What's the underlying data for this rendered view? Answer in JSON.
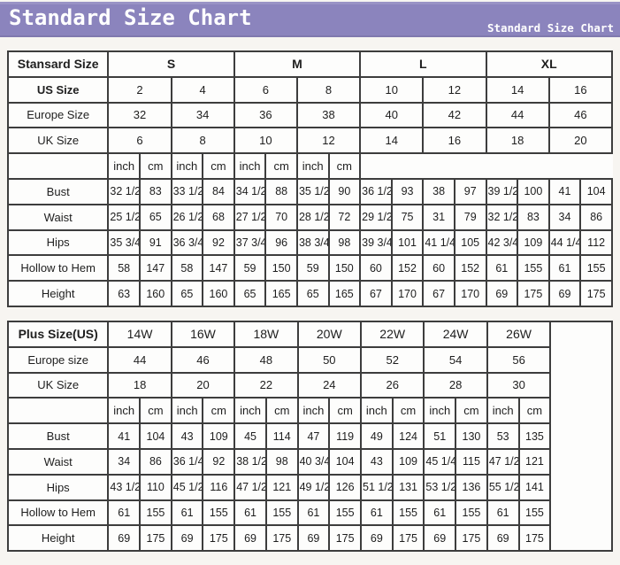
{
  "banner": {
    "title": "Standard Size Chart",
    "subtitle": "Standard Size Chart"
  },
  "colors": {
    "banner_bg": "#8b84bd",
    "banner_text": "#ffffff",
    "table_border": "#3d3d3d",
    "cell_bg": "#fdfdfc",
    "page_bg": "#f7f5f1"
  },
  "chart_data": [
    {
      "type": "table",
      "name": "standard-size-table",
      "corner_label": "Stansard Size",
      "corner_bold": true,
      "size_groups": [
        "S",
        "M",
        "L",
        "XL"
      ],
      "group_header_bold": true,
      "header_colspan": 4,
      "label_col_width": "16.6%",
      "trailing_empty": false,
      "size_rows": [
        {
          "label": "US Size",
          "bold": true,
          "values": [
            "2",
            "4",
            "6",
            "8",
            "10",
            "12",
            "14",
            "16"
          ]
        },
        {
          "label": "Europe Size",
          "bold": false,
          "values": [
            "32",
            "34",
            "36",
            "38",
            "40",
            "42",
            "44",
            "46"
          ]
        },
        {
          "label": "UK Size",
          "bold": false,
          "values": [
            "6",
            "8",
            "10",
            "12",
            "14",
            "16",
            "18",
            "20"
          ]
        }
      ],
      "unit_headers": [
        "inch",
        "cm"
      ],
      "measure_rows": [
        {
          "label": "Bust",
          "values": [
            "32 1/2",
            "83",
            "33 1/2",
            "84",
            "34 1/2",
            "88",
            "35 1/2",
            "90",
            "36 1/2",
            "93",
            "38",
            "97",
            "39 1/2",
            "100",
            "41",
            "104"
          ]
        },
        {
          "label": "Waist",
          "values": [
            "25 1/2",
            "65",
            "26 1/2",
            "68",
            "27 1/2",
            "70",
            "28 1/2",
            "72",
            "29 1/2",
            "75",
            "31",
            "79",
            "32 1/2",
            "83",
            "34",
            "86"
          ]
        },
        {
          "label": "Hips",
          "values": [
            "35 3/4",
            "91",
            "36 3/4",
            "92",
            "37 3/4",
            "96",
            "38 3/4",
            "98",
            "39 3/4",
            "101",
            "41 1/4",
            "105",
            "42 3/4",
            "109",
            "44 1/4",
            "112"
          ]
        },
        {
          "label": "Hollow to Hem",
          "values": [
            "58",
            "147",
            "58",
            "147",
            "59",
            "150",
            "59",
            "150",
            "60",
            "152",
            "60",
            "152",
            "61",
            "155",
            "61",
            "155"
          ]
        },
        {
          "label": "Height",
          "values": [
            "63",
            "160",
            "65",
            "160",
            "65",
            "165",
            "65",
            "165",
            "67",
            "170",
            "67",
            "170",
            "69",
            "175",
            "69",
            "175"
          ]
        }
      ]
    },
    {
      "type": "table",
      "name": "plus-size-table",
      "corner_label": "Plus Size(US)",
      "corner_bold": true,
      "size_groups": [
        "14W",
        "16W",
        "18W",
        "20W",
        "22W",
        "24W",
        "26W"
      ],
      "group_header_bold": false,
      "header_colspan": 2,
      "label_col_width": "16.6%",
      "trailing_empty": true,
      "empty_col_width": "10.2%",
      "size_rows": [
        {
          "label": "Europe size",
          "bold": false,
          "values": [
            "44",
            "46",
            "48",
            "50",
            "52",
            "54",
            "56"
          ]
        },
        {
          "label": "UK Size",
          "bold": false,
          "values": [
            "18",
            "20",
            "22",
            "24",
            "26",
            "28",
            "30"
          ]
        }
      ],
      "unit_headers": [
        "inch",
        "cm"
      ],
      "measure_rows": [
        {
          "label": "Bust",
          "values": [
            "41",
            "104",
            "43",
            "109",
            "45",
            "114",
            "47",
            "119",
            "49",
            "124",
            "51",
            "130",
            "53",
            "135"
          ]
        },
        {
          "label": "Waist",
          "values": [
            "34",
            "86",
            "36 1/4",
            "92",
            "38 1/2",
            "98",
            "40 3/4",
            "104",
            "43",
            "109",
            "45 1/4",
            "115",
            "47 1/2",
            "121"
          ]
        },
        {
          "label": "Hips",
          "values": [
            "43 1/2",
            "110",
            "45 1/2",
            "116",
            "47 1/2",
            "121",
            "49 1/2",
            "126",
            "51 1/2",
            "131",
            "53 1/2",
            "136",
            "55 1/2",
            "141"
          ]
        },
        {
          "label": "Hollow to Hem",
          "values": [
            "61",
            "155",
            "61",
            "155",
            "61",
            "155",
            "61",
            "155",
            "61",
            "155",
            "61",
            "155",
            "61",
            "155"
          ]
        },
        {
          "label": "Height",
          "values": [
            "69",
            "175",
            "69",
            "175",
            "69",
            "175",
            "69",
            "175",
            "69",
            "175",
            "69",
            "175",
            "69",
            "175"
          ]
        }
      ]
    }
  ]
}
